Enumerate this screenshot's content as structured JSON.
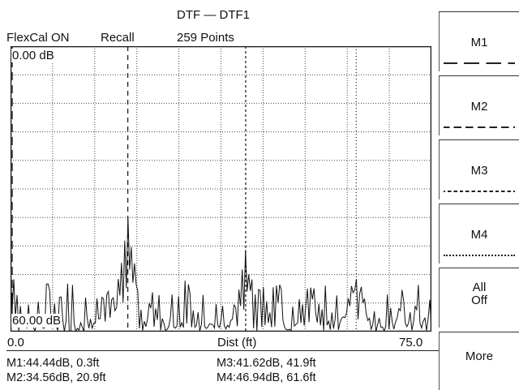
{
  "header": {
    "title": "DTF — DTF1",
    "flexcal": "FlexCal ON",
    "mode": "Recall",
    "points": "259 Points"
  },
  "plot": {
    "top_label": "0.00 dB",
    "bottom_label": "60.00 dB",
    "x_start": "0.0",
    "x_label": "Dist (ft)",
    "x_end": "75.0"
  },
  "chart_data": {
    "type": "line",
    "xlabel": "Dist (ft)",
    "xlim": [
      0,
      75
    ],
    "ylim_label": [
      "0.00 dB",
      "60.00 dB"
    ],
    "grid": true,
    "markers": [
      {
        "name": "M1",
        "value_db": 44.44,
        "dist_ft": 0.3,
        "style": "long-dash"
      },
      {
        "name": "M2",
        "value_db": 34.56,
        "dist_ft": 20.9,
        "style": "dash"
      },
      {
        "name": "M3",
        "value_db": 41.62,
        "dist_ft": 41.9,
        "style": "short-dash"
      },
      {
        "name": "M4",
        "value_db": 46.94,
        "dist_ft": 61.6,
        "style": "dot"
      }
    ]
  },
  "readouts": {
    "m1": "M1:44.44dB, 0.3ft",
    "m2": "M2:34.56dB, 20.9ft",
    "m3": "M3:41.62dB, 41.9ft",
    "m4": "M4:46.94dB, 61.6ft"
  },
  "softkeys": [
    {
      "label": "M1",
      "line": "long-dash"
    },
    {
      "label": "M2",
      "line": "dash"
    },
    {
      "label": "M3",
      "line": "short-dash"
    },
    {
      "label": "M4",
      "line": "dot"
    },
    {
      "label": "All\nOff",
      "line": ""
    },
    {
      "label": "More",
      "line": ""
    }
  ]
}
